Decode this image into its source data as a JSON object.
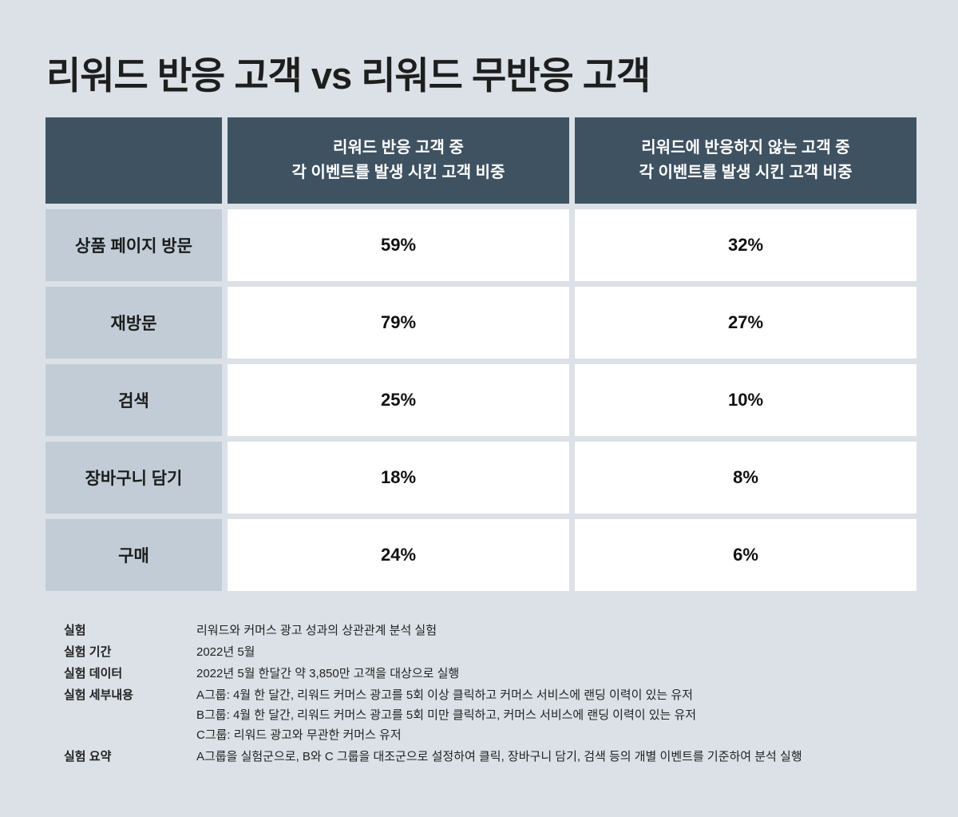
{
  "title": "리워드 반응 고객 vs 리워드 무반응 고객",
  "table": {
    "headers": [
      "",
      "리워드 반응 고객 중\n각 이벤트를 발생 시킨 고객 비중",
      "리워드에 반응하지 않는 고객 중\n각 이벤트를 발생 시킨 고객 비중"
    ],
    "rows": [
      {
        "label": "상품 페이지 방문",
        "responsive": "59%",
        "non_responsive": "32%"
      },
      {
        "label": "재방문",
        "responsive": "79%",
        "non_responsive": "27%"
      },
      {
        "label": "검색",
        "responsive": "25%",
        "non_responsive": "10%"
      },
      {
        "label": "장바구니 담기",
        "responsive": "18%",
        "non_responsive": "8%"
      },
      {
        "label": "구매",
        "responsive": "24%",
        "non_responsive": "6%"
      }
    ]
  },
  "notes": [
    {
      "key": "실험",
      "values": [
        "리워드와 커머스 광고 성과의 상관관계 분석 실험"
      ]
    },
    {
      "key": "실험 기간",
      "values": [
        "2022년 5월"
      ]
    },
    {
      "key": "실험 데이터",
      "values": [
        "2022년 5월 한달간 약 3,850만 고객을 대상으로 실행"
      ]
    },
    {
      "key": "실험 세부내용",
      "values": [
        "A그룹: 4월 한 달간, 리워드 커머스 광고를 5회 이상 클릭하고 커머스 서비스에 랜딩 이력이 있는 유저",
        "B그룹: 4월 한 달간, 리워드 커머스 광고를 5회 미만 클릭하고, 커머스 서비스에 랜딩 이력이 있는 유저",
        "C그룹: 리워드 광고와 무관한 커머스 유저"
      ]
    },
    {
      "key": "실험 요약",
      "values": [
        "A그룹을 실험군으로, B와 C 그룹을 대조군으로 설정하여 클릭, 장바구니 담기, 검색 등의 개별 이벤트를 기준하여 분석 실행"
      ]
    }
  ],
  "colors": {
    "background": "#dbe1e6",
    "header": "#3e5262",
    "row_label": "#c1ccd6",
    "cell": "#ffffff"
  }
}
